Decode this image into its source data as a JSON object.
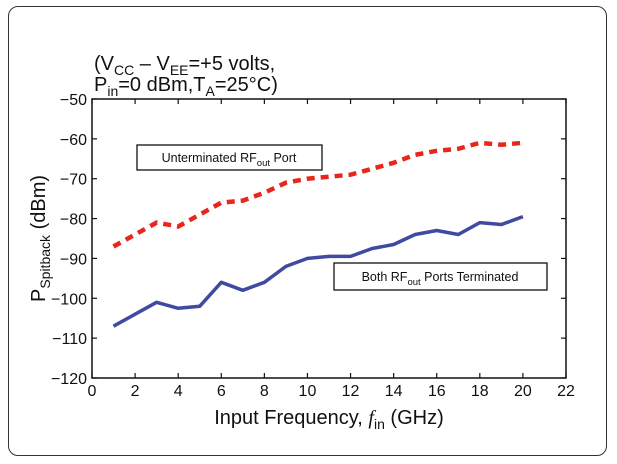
{
  "chart_data": {
    "type": "line",
    "conditions": {
      "line1": {
        "prefix": "(V",
        "sub1": "CC",
        "mid": " – V",
        "sub2": "EE",
        "suffix": "=+5 volts,"
      },
      "line2": {
        "prefix": "P",
        "sub1": "in",
        "mid": "=0 dBm,T",
        "sub2": "A",
        "suffix": "=25°C)"
      }
    },
    "xlabel": {
      "main": "Input Frequency, ",
      "italic": "f",
      "sub": "in",
      "unit": " (GHz)"
    },
    "ylabel": {
      "main": "P",
      "sub": "Spitback",
      "unit": " (dBm)"
    },
    "xlim": [
      0,
      22
    ],
    "ylim": [
      -120,
      -50
    ],
    "x_ticks": [
      0,
      2,
      4,
      6,
      8,
      10,
      12,
      14,
      16,
      18,
      20,
      22
    ],
    "y_ticks": [
      -50,
      -60,
      -70,
      -80,
      -90,
      -100,
      -110,
      -120
    ],
    "grid": false,
    "series": [
      {
        "name_parts": {
          "prefix": "Unterminated RF",
          "sub": "out",
          "suffix": " Port"
        },
        "style": "dashed",
        "color": "#e8261c",
        "x": [
          1,
          2,
          3,
          4,
          5,
          6,
          7,
          8,
          9,
          10,
          11,
          12,
          13,
          14,
          15,
          16,
          17,
          18,
          19,
          20
        ],
        "y": [
          -87,
          -84,
          -81,
          -82,
          -79,
          -76,
          -75.5,
          -73.5,
          -71,
          -70,
          -69.5,
          -69,
          -67.5,
          -66,
          -64,
          -63,
          -62.5,
          -61,
          -61.5,
          -61
        ]
      },
      {
        "name_parts": {
          "prefix": "Both RF",
          "sub": "out",
          "suffix": " Ports Terminated"
        },
        "style": "solid",
        "color": "#3f4aa0",
        "x": [
          1,
          2,
          3,
          4,
          5,
          6,
          7,
          8,
          9,
          10,
          11,
          12,
          13,
          14,
          15,
          16,
          17,
          18,
          19,
          20
        ],
        "y": [
          -107,
          -104,
          -101,
          -102.5,
          -102,
          -96,
          -98,
          -96,
          -92,
          -90,
          -89.5,
          -89.5,
          -87.5,
          -86.5,
          -84,
          -83,
          -84,
          -81,
          -81.5,
          -79.5
        ]
      }
    ]
  }
}
